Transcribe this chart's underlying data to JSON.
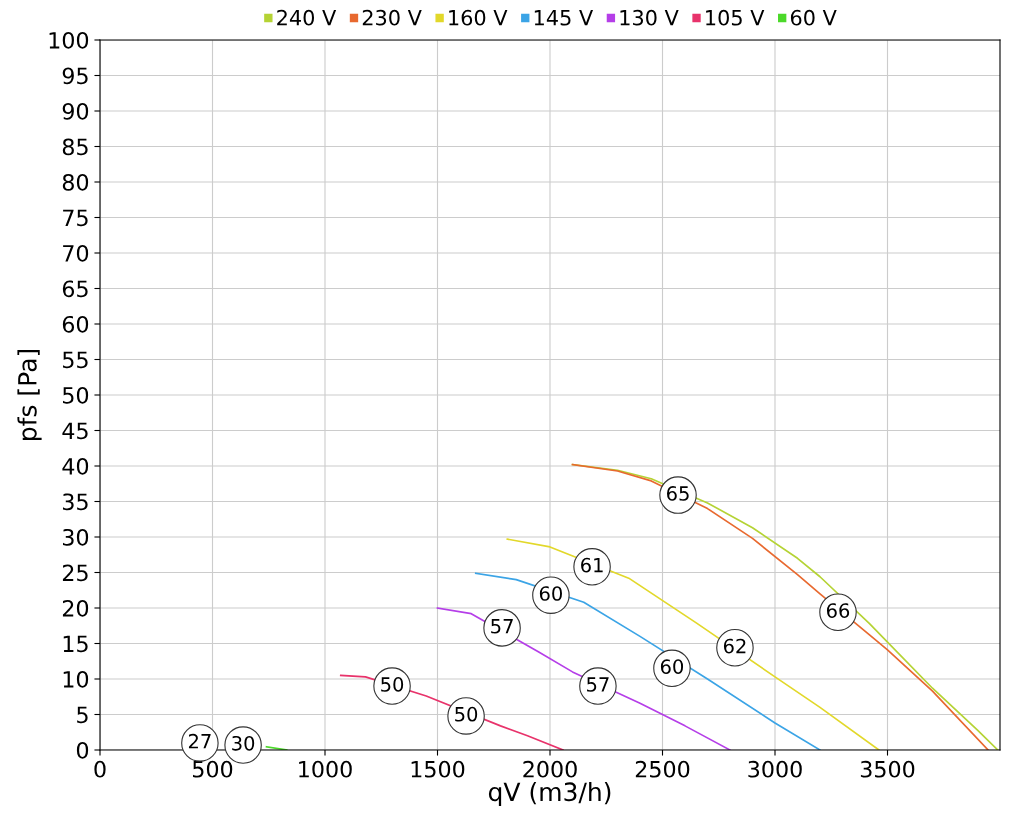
{
  "chart_data": {
    "type": "line",
    "xlabel": "qV (m3/h)",
    "ylabel": "pfs [Pa]",
    "xlim": [
      0,
      4000
    ],
    "xticks": [
      0,
      500,
      1000,
      1500,
      2000,
      2500,
      3000,
      3500
    ],
    "ylim": [
      0,
      100
    ],
    "yticks": [
      0,
      5,
      10,
      15,
      20,
      25,
      30,
      35,
      40,
      45,
      50,
      55,
      60,
      65,
      70,
      75,
      80,
      85,
      90,
      95,
      100
    ],
    "grid": true,
    "legend": "top",
    "marker": "none",
    "line_style": "solid",
    "series": [
      {
        "name": "240 V",
        "color": "#b5d334",
        "x": [
          2100,
          2300,
          2450,
          2700,
          2900,
          3100,
          3200,
          3420,
          3500,
          3700,
          3900,
          3990
        ],
        "values": [
          40.2,
          39.4,
          38.2,
          34.8,
          31.3,
          27,
          24.4,
          17.8,
          15.2,
          8.7,
          2.8,
          0
        ]
      },
      {
        "name": "230 V",
        "color": "#e8692f",
        "x": [
          2100,
          2300,
          2450,
          2700,
          2900,
          3100,
          3200,
          3420,
          3500,
          3700,
          3947
        ],
        "values": [
          40.2,
          39.3,
          37.9,
          34,
          29.8,
          24.7,
          22,
          16.2,
          14.1,
          8.3,
          0
        ]
      },
      {
        "name": "160 V",
        "color": "#e2d82a",
        "x": [
          1810,
          2000,
          2350,
          2650,
          3000,
          3200,
          3462
        ],
        "values": [
          29.7,
          28.6,
          24.2,
          17.9,
          10.3,
          6,
          0
        ]
      },
      {
        "name": "145 V",
        "color": "#3ba4e6",
        "x": [
          1670,
          1850,
          2150,
          2400,
          2700,
          3000,
          3200
        ],
        "values": [
          24.9,
          24,
          20.8,
          16,
          10,
          3.8,
          0
        ]
      },
      {
        "name": "130 V",
        "color": "#b53ee8",
        "x": [
          1500,
          1650,
          1950,
          2100,
          2400,
          2600,
          2800
        ],
        "values": [
          20,
          19.2,
          13.8,
          11,
          6.6,
          3.4,
          0
        ]
      },
      {
        "name": "105 V",
        "color": "#e8336b",
        "x": [
          1070,
          1180,
          1450,
          1780,
          1900,
          2058
        ],
        "values": [
          10.5,
          10.3,
          7.6,
          3.4,
          2.0,
          0
        ]
      },
      {
        "name": "60 V",
        "color": "#4cd92a",
        "x": [
          740,
          830
        ],
        "values": [
          0.45,
          0
        ]
      }
    ],
    "annotations": [
      {
        "text": "65",
        "x": 2569,
        "y": 35.9
      },
      {
        "text": "61",
        "x": 2187,
        "y": 25.8
      },
      {
        "text": "60",
        "x": 2004,
        "y": 21.8
      },
      {
        "text": "57",
        "x": 1787,
        "y": 17.2
      },
      {
        "text": "60",
        "x": 2542,
        "y": 11.5
      },
      {
        "text": "62",
        "x": 2822,
        "y": 14.4
      },
      {
        "text": "57",
        "x": 2213,
        "y": 9.0
      },
      {
        "text": "50",
        "x": 1298,
        "y": 9.0
      },
      {
        "text": "50",
        "x": 1627,
        "y": 4.8
      },
      {
        "text": "66",
        "x": 3280,
        "y": 19.4
      },
      {
        "text": "27",
        "x": 444,
        "y": 1.0
      },
      {
        "text": "30",
        "x": 636,
        "y": 0.7
      }
    ]
  }
}
